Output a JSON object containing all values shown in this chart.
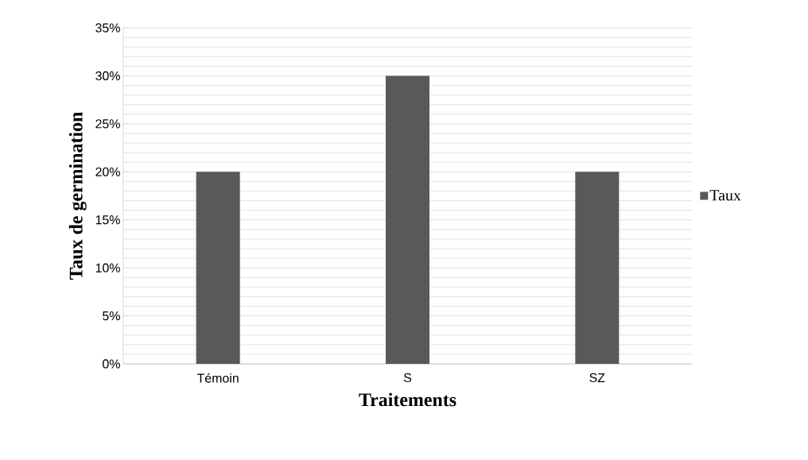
{
  "chart_data": {
    "type": "bar",
    "categories": [
      "Témoin",
      "S",
      "SZ"
    ],
    "series": [
      {
        "name": "Taux",
        "color": "#595959",
        "values": [
          20,
          30,
          20
        ]
      }
    ],
    "xlabel": "Traitements",
    "ylabel": "Taux de germination",
    "ylim": [
      0,
      35
    ],
    "yticks": [
      {
        "value": 0,
        "label": "0%"
      },
      {
        "value": 5,
        "label": "5%"
      },
      {
        "value": 10,
        "label": "10%"
      },
      {
        "value": 15,
        "label": "15%"
      },
      {
        "value": 20,
        "label": "20%"
      },
      {
        "value": 25,
        "label": "25%"
      },
      {
        "value": 30,
        "label": "30%"
      },
      {
        "value": 35,
        "label": "35%"
      }
    ],
    "grid": "y",
    "legend": "right"
  }
}
